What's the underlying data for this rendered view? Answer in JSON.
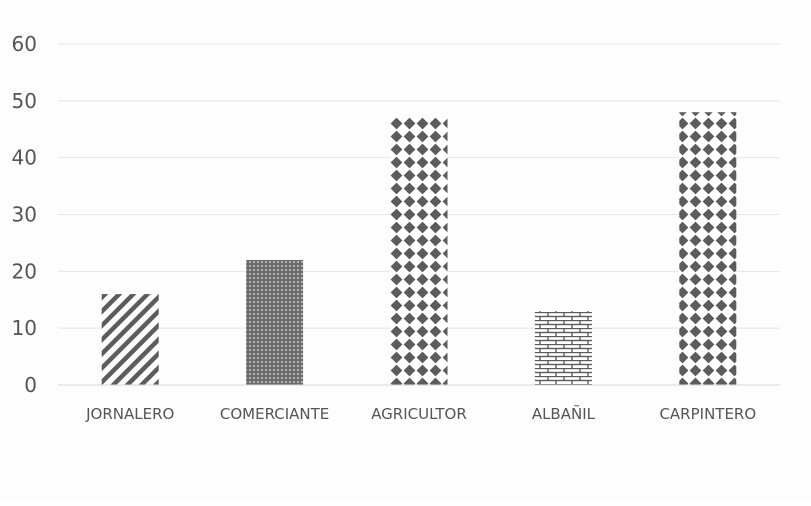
{
  "chart_data": {
    "type": "bar",
    "categories": [
      "JORNALERO",
      "COMERCIANTE",
      "AGRICULTOR",
      "ALBAÑIL",
      "CARPINTERO"
    ],
    "values": [
      16,
      22,
      47,
      13,
      48
    ],
    "patterns": [
      "diagonal-stripes",
      "fine-dots",
      "checker-diamonds",
      "bricks",
      "checker-diamonds"
    ],
    "yticks": [
      "0",
      "10",
      "20",
      "30",
      "40",
      "50",
      "60"
    ],
    "ylim": [
      0,
      60
    ],
    "grid": true,
    "colors": {
      "pattern": "#5c5c5c",
      "grid": "#e6e6e6",
      "text": "#555555",
      "background": "#fdfdfd"
    }
  }
}
